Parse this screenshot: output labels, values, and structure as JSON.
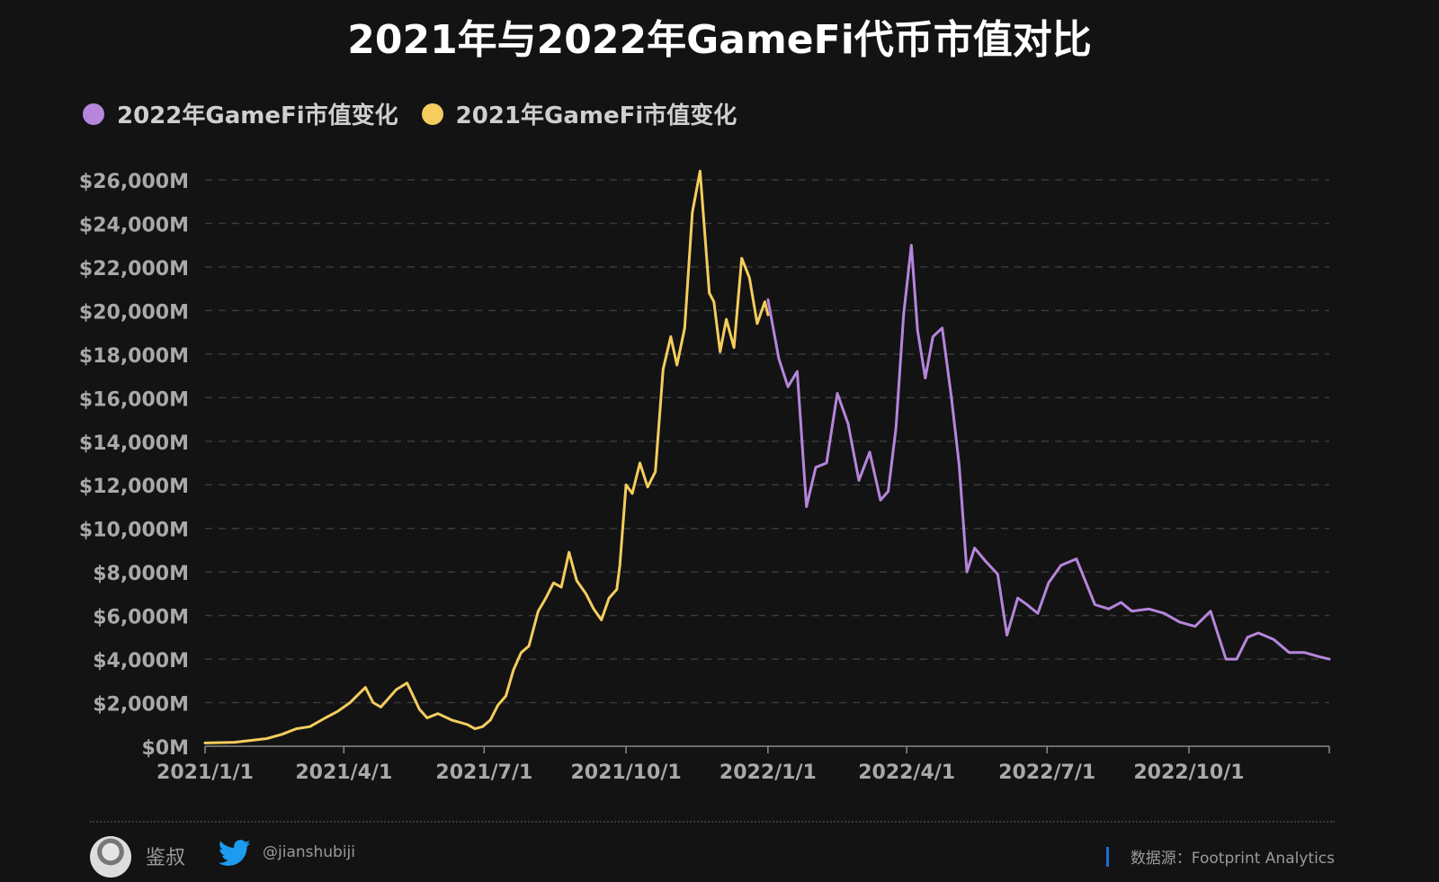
{
  "title": "2021年与2022年GameFi代币市值对比",
  "legend": [
    {
      "label": "2022年GameFi市值变化",
      "color": "#b586dc"
    },
    {
      "label": "2021年GameFi市值变化",
      "color": "#f4cd5e"
    }
  ],
  "footer": {
    "author": "鉴叔",
    "handle": "@jianshubiji",
    "source": "数据源：Footprint  Analytics",
    "icons": [
      "avatar",
      "twitter-icon"
    ]
  },
  "chart_data": {
    "type": "line",
    "title": "2021年与2022年GameFi代币市值对比",
    "xlabel": "",
    "ylabel": "",
    "x_ticks": [
      "2021/1/1",
      "2021/4/1",
      "2021/7/1",
      "2021/10/1",
      "2022/1/1",
      "2022/4/1",
      "2022/7/1",
      "2022/10/1"
    ],
    "y_ticks": [
      "$0M",
      "$2,000M",
      "$4,000M",
      "$6,000M",
      "$8,000M",
      "$10,000M",
      "$12,000M",
      "$14,000M",
      "$16,000M",
      "$18,000M",
      "$20,000M",
      "$22,000M",
      "$24,000M",
      "$26,000M"
    ],
    "xlim": [
      "2021-01-01",
      "2022-12-31"
    ],
    "ylim": [
      0,
      26000
    ],
    "units": "$M",
    "grid": "horizontal dashed",
    "legend_position": "top-left",
    "series": [
      {
        "name": "2021年GameFi市值变化",
        "color": "#f4cd5e",
        "x": [
          "2021-01-01",
          "2021-01-20",
          "2021-02-10",
          "2021-02-20",
          "2021-03-01",
          "2021-03-10",
          "2021-03-20",
          "2021-03-28",
          "2021-04-05",
          "2021-04-15",
          "2021-04-20",
          "2021-04-25",
          "2021-05-05",
          "2021-05-12",
          "2021-05-16",
          "2021-05-20",
          "2021-05-25",
          "2021-06-01",
          "2021-06-10",
          "2021-06-20",
          "2021-06-25",
          "2021-06-30",
          "2021-07-05",
          "2021-07-10",
          "2021-07-15",
          "2021-07-20",
          "2021-07-25",
          "2021-07-30",
          "2021-08-05",
          "2021-08-10",
          "2021-08-15",
          "2021-08-20",
          "2021-08-25",
          "2021-08-30",
          "2021-09-01",
          "2021-09-05",
          "2021-09-10",
          "2021-09-15",
          "2021-09-20",
          "2021-09-25",
          "2021-09-27",
          "2021-10-01",
          "2021-10-05",
          "2021-10-10",
          "2021-10-15",
          "2021-10-20",
          "2021-10-25",
          "2021-10-30",
          "2021-11-03",
          "2021-11-08",
          "2021-11-13",
          "2021-11-18",
          "2021-11-24",
          "2021-11-27",
          "2021-12-01",
          "2021-12-05",
          "2021-12-10",
          "2021-12-15",
          "2021-12-20",
          "2021-12-25",
          "2021-12-30",
          "2022-01-01"
        ],
        "values": [
          150,
          180,
          350,
          550,
          800,
          900,
          1300,
          1600,
          2000,
          2700,
          2000,
          1800,
          2600,
          2900,
          2300,
          1700,
          1300,
          1500,
          1200,
          1000,
          800,
          900,
          1200,
          1900,
          2300,
          3500,
          4300,
          4600,
          6200,
          6800,
          7500,
          7300,
          8900,
          7600,
          7400,
          7000,
          6300,
          5800,
          6800,
          7200,
          8300,
          12000,
          11600,
          13000,
          11900,
          12600,
          17300,
          18800,
          17500,
          19200,
          24500,
          26400,
          20800,
          20400,
          18100,
          19600,
          18300,
          22400,
          21500,
          19400,
          20400,
          19800
        ]
      },
      {
        "name": "2022年GameFi市值变化",
        "color": "#b586dc",
        "x": [
          "2022-01-01",
          "2022-01-08",
          "2022-01-14",
          "2022-01-20",
          "2022-01-26",
          "2022-02-01",
          "2022-02-08",
          "2022-02-15",
          "2022-02-22",
          "2022-03-01",
          "2022-03-08",
          "2022-03-15",
          "2022-03-20",
          "2022-03-25",
          "2022-03-30",
          "2022-04-04",
          "2022-04-08",
          "2022-04-13",
          "2022-04-18",
          "2022-04-24",
          "2022-04-30",
          "2022-05-05",
          "2022-05-10",
          "2022-05-15",
          "2022-05-22",
          "2022-05-30",
          "2022-06-05",
          "2022-06-12",
          "2022-06-18",
          "2022-06-25",
          "2022-07-02",
          "2022-07-10",
          "2022-07-20",
          "2022-08-01",
          "2022-08-10",
          "2022-08-18",
          "2022-08-25",
          "2022-09-05",
          "2022-09-15",
          "2022-09-25",
          "2022-10-05",
          "2022-10-15",
          "2022-10-25",
          "2022-11-01",
          "2022-11-08",
          "2022-11-15",
          "2022-11-25",
          "2022-12-05",
          "2022-12-15",
          "2022-12-25",
          "2022-12-31"
        ],
        "values": [
          20500,
          17800,
          16500,
          17200,
          11000,
          12800,
          13000,
          16200,
          14800,
          12200,
          13500,
          11300,
          11700,
          14600,
          19800,
          23000,
          19100,
          16900,
          18800,
          19200,
          16000,
          12900,
          8000,
          9100,
          8500,
          7900,
          5100,
          6800,
          6500,
          6100,
          7500,
          8300,
          8600,
          6500,
          6300,
          6600,
          6200,
          6300,
          6100,
          5700,
          5500,
          6200,
          4000,
          4000,
          5000,
          5200,
          4900,
          4300,
          4300,
          4100,
          4000
        ]
      }
    ]
  }
}
